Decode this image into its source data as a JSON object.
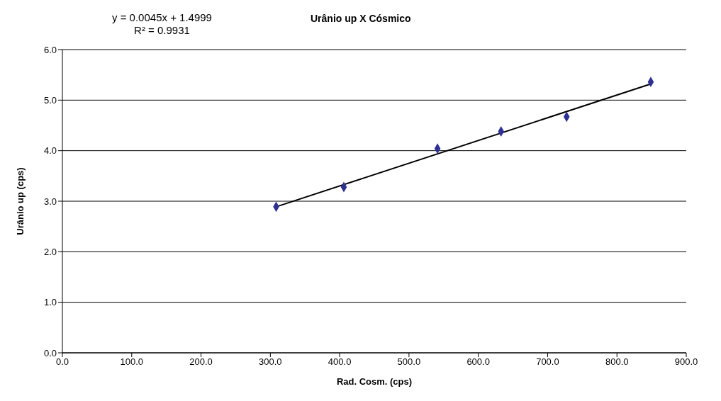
{
  "chart_data": {
    "type": "scatter",
    "title": "Urânio up X Cósmico",
    "xlabel": "Rad. Cosm. (cps)",
    "ylabel": "Urânio up (cps)",
    "annotations": [
      "y = 0.0045x + 1.4999",
      "R² = 0.9931"
    ],
    "series": [
      {
        "color": "#2e3192",
        "marker": "diamond",
        "x": [
          308.4,
          406,
          541.1,
          632.8,
          727.4,
          848.8
        ],
        "values": [
          2.89,
          3.28,
          4.04,
          4.38,
          4.67,
          5.36
        ]
      },
      {
        "type": "line",
        "color": "#000000",
        "marker": "none",
        "line_style": "solid",
        "x": [
          308.4,
          848.8
        ],
        "values": [
          2.89,
          5.32
        ]
      }
    ],
    "xlim": [
      0,
      900
    ],
    "xticks": [
      {
        "value": 0,
        "label": "0.0"
      },
      {
        "value": 100,
        "label": "100.0"
      },
      {
        "value": 200,
        "label": "200.0"
      },
      {
        "value": 300,
        "label": "300.0"
      },
      {
        "value": 400,
        "label": "400.0"
      },
      {
        "value": 500,
        "label": "500.0"
      },
      {
        "value": 600,
        "label": "600.0"
      },
      {
        "value": 700,
        "label": "700.0"
      },
      {
        "value": 800,
        "label": "800.0"
      },
      {
        "value": 900,
        "label": "900.0"
      }
    ],
    "ylim": [
      0,
      6
    ],
    "yticks": [
      {
        "value": 0,
        "label": "0.0"
      },
      {
        "value": 1,
        "label": "1.0"
      },
      {
        "value": 2,
        "label": "2.0"
      },
      {
        "value": 3,
        "label": "3.0"
      },
      {
        "value": 4,
        "label": "4.0"
      },
      {
        "value": 5,
        "label": "5.0"
      },
      {
        "value": 6,
        "label": "6.0"
      }
    ],
    "grid": "y"
  }
}
